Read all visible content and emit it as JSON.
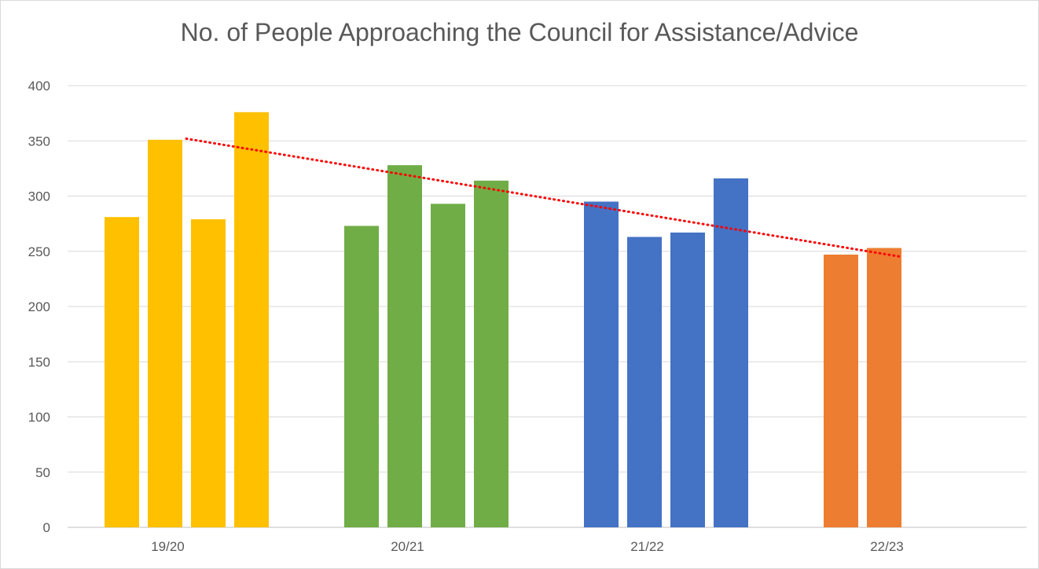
{
  "chart_data": {
    "type": "bar",
    "title": "No. of People Approaching the Council for Assistance/Advice",
    "xlabel": "",
    "ylabel": "",
    "ylim": [
      0,
      400
    ],
    "yticks": [
      0,
      50,
      100,
      150,
      200,
      250,
      300,
      350,
      400
    ],
    "grid": true,
    "legend": "none",
    "groups": [
      {
        "label": "19/20",
        "color": "#ffc000",
        "values": [
          281,
          351,
          279,
          376
        ]
      },
      {
        "label": "20/21",
        "color": "#70ad47",
        "values": [
          273,
          328,
          293,
          314
        ]
      },
      {
        "label": "21/22",
        "color": "#4472c4",
        "values": [
          295,
          263,
          267,
          316
        ]
      },
      {
        "label": "22/23",
        "color": "#ed7d31",
        "values": [
          247,
          253
        ]
      }
    ],
    "trendline": {
      "type": "linear",
      "style": "dotted",
      "color": "#ff0000",
      "start": 352,
      "end": 245
    }
  }
}
